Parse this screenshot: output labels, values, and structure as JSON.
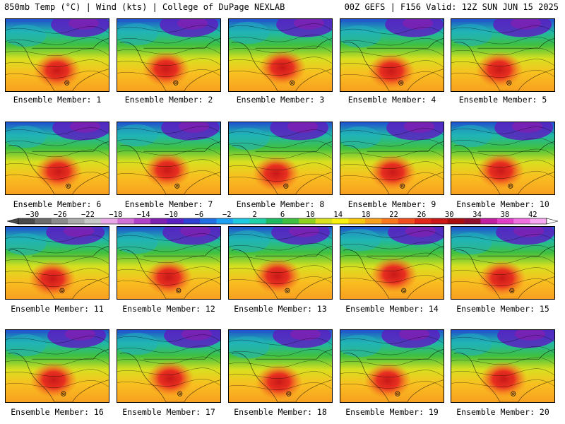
{
  "header": {
    "left": "850mb Temp (°C) | Wind (kts) | College of DuPage NEXLAB",
    "right": "00Z GEFS | F156 Valid: 12Z SUN JUN 15 2025"
  },
  "caption_prefix": "Ensemble Member: ",
  "members": [
    1,
    2,
    3,
    4,
    5,
    6,
    7,
    8,
    9,
    10,
    11,
    12,
    13,
    14,
    15,
    16,
    17,
    18,
    19,
    20
  ],
  "colorbar": {
    "ticks": [
      -30,
      -26,
      -22,
      -18,
      -14,
      -10,
      -6,
      -2,
      2,
      6,
      10,
      14,
      18,
      22,
      26,
      30,
      34,
      38,
      42
    ],
    "colors": [
      "#4a4a4a",
      "#6b6b6b",
      "#8c8c8c",
      "#ababab",
      "#c8c8c8",
      "#e8a8e8",
      "#d070d8",
      "#b040c8",
      "#8020b0",
      "#5a20c0",
      "#3040d0",
      "#2070e0",
      "#20a0f0",
      "#20c8e0",
      "#20d0a8",
      "#20b860",
      "#40c040",
      "#90d020",
      "#d8e020",
      "#f8f010",
      "#f8c810",
      "#f8a020",
      "#f87820",
      "#f05020",
      "#e02818",
      "#c81818",
      "#a81010",
      "#901030",
      "#c020a0",
      "#e040c8",
      "#f070e0",
      "#f8a8f0"
    ]
  }
}
